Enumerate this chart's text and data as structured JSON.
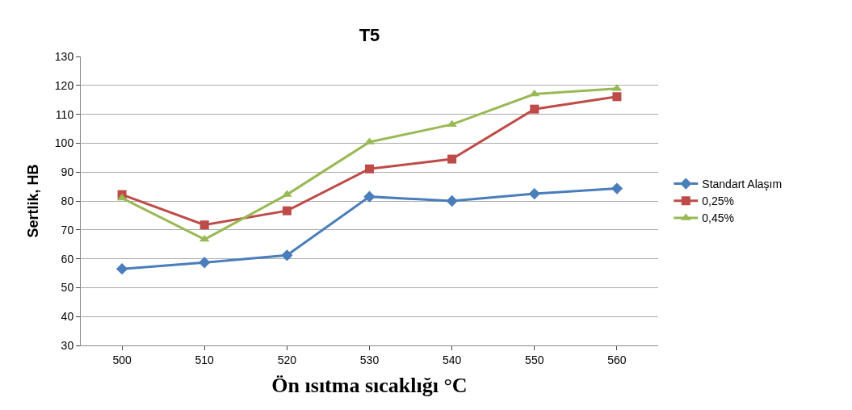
{
  "chart_data": {
    "type": "line",
    "title": "T5",
    "xlabel": "Ön ısıtma sıcaklığı °C",
    "ylabel": "Sertlik, HB",
    "categories": [
      "500",
      "510",
      "520",
      "530",
      "540",
      "550",
      "560"
    ],
    "ylim": [
      30,
      130
    ],
    "yticks": [
      30,
      40,
      50,
      60,
      70,
      80,
      90,
      100,
      110,
      120,
      130
    ],
    "grid": "y",
    "legend": "right",
    "series": [
      {
        "name": "Standart Alaşım",
        "color": "#4a7ebb",
        "marker": "diamond",
        "values": [
          56.5,
          58.7,
          61.2,
          81.5,
          80,
          82.5,
          84.3
        ]
      },
      {
        "name": "0,25%",
        "color": "#be4b48",
        "marker": "square",
        "values": [
          82.2,
          71.7,
          76.6,
          91.1,
          94.5,
          111.8,
          116.1
        ]
      },
      {
        "name": "0,45%",
        "color": "#98b954",
        "marker": "triangle",
        "values": [
          81,
          66.7,
          82.2,
          100.4,
          106.5,
          117,
          118.9
        ]
      }
    ]
  }
}
